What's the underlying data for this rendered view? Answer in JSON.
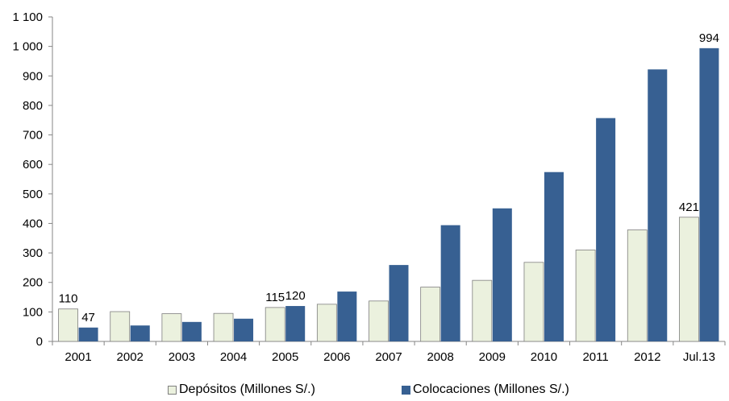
{
  "chart_data": {
    "type": "bar",
    "title": "",
    "xlabel": "",
    "ylabel": "",
    "ylim": [
      0,
      1100
    ],
    "yticks": [
      0,
      100,
      200,
      300,
      400,
      500,
      600,
      700,
      800,
      900,
      1000,
      1100
    ],
    "ytick_labels": [
      "0",
      "100",
      "200",
      "300",
      "400",
      "500",
      "600",
      "700",
      "800",
      "900",
      "1 000",
      "1 100"
    ],
    "categories": [
      "2001",
      "2002",
      "2003",
      "2004",
      "2005",
      "2006",
      "2007",
      "2008",
      "2009",
      "2010",
      "2011",
      "2012",
      "Jul.13"
    ],
    "series": [
      {
        "name": "Depósitos (Millones S/.)",
        "color": "#ebf1de",
        "border": "#7f7f7f",
        "values": [
          110,
          101,
          94,
          95,
          115,
          126,
          137,
          184,
          207,
          268,
          310,
          378,
          421
        ],
        "data_labels": [
          "110",
          null,
          null,
          null,
          "115",
          null,
          null,
          null,
          null,
          null,
          null,
          null,
          "421"
        ]
      },
      {
        "name": "Colocaciones (Millones S/.)",
        "color": "#376092",
        "border": "#376092",
        "values": [
          47,
          54,
          66,
          77,
          120,
          169,
          259,
          394,
          451,
          574,
          757,
          922,
          994
        ],
        "data_labels": [
          "47",
          null,
          null,
          null,
          "120",
          null,
          null,
          null,
          null,
          null,
          null,
          null,
          "994"
        ]
      }
    ],
    "grid": false,
    "legend_position": "bottom"
  }
}
